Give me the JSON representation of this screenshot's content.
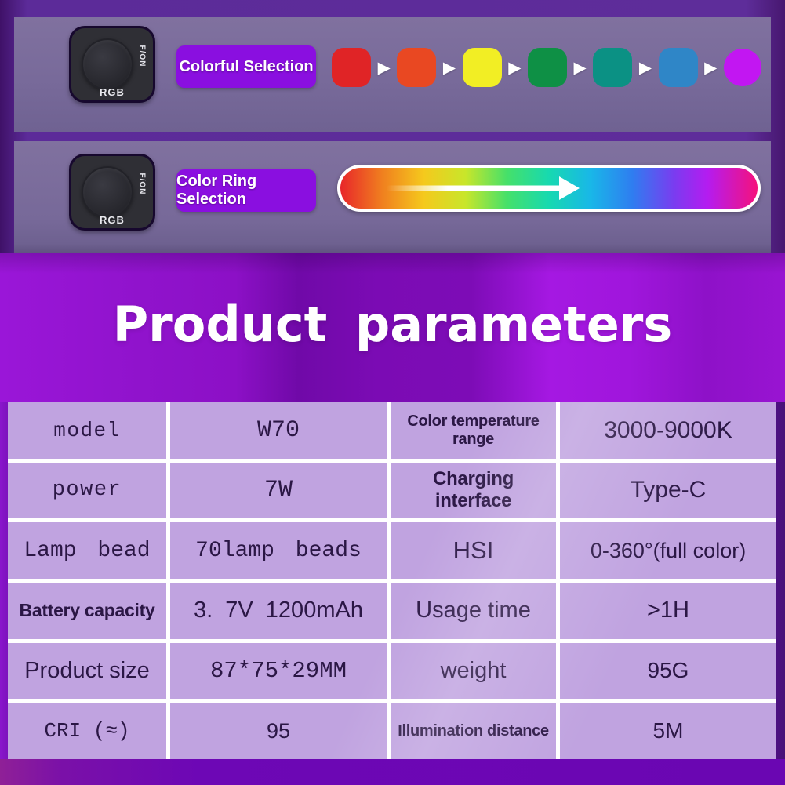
{
  "title": "Product parameters",
  "banners": [
    {
      "button_label": "Colorful Selection",
      "device": {
        "power_label": "F/ON",
        "mode_label": "RGB"
      },
      "arrow_icon": "▶",
      "swatches": [
        "#e02426",
        "#e94822",
        "#f2ee24",
        "#0e9045",
        "#0b9184",
        "#2f86c7",
        "#c216f2"
      ]
    },
    {
      "button_label": "Color Ring Selection",
      "device": {
        "power_label": "F/ON",
        "mode_label": "RGB"
      },
      "gradient_stops": [
        "#e8262a 0%",
        "#f07f1f 10%",
        "#f5c91d 20%",
        "#c8e62a 30%",
        "#45e06a 40%",
        "#17d9b0 50%",
        "#19b7e8 60%",
        "#2f7df0 70%",
        "#7a3cf0 80%",
        "#b41cf0 88%",
        "#f5127c 100%"
      ]
    }
  ],
  "spec_table": {
    "rows": [
      {
        "c0": "model",
        "c1": "W70",
        "c2": "Color temperature range",
        "c3": "3000-9000K"
      },
      {
        "c0": "power",
        "c1": "7W",
        "c2": "Charging interface",
        "c3": "Type-C"
      },
      {
        "c0": "Lamp bead",
        "c1": "70lamp beads",
        "c2": "HSI",
        "c3": "0-360°(full color)"
      },
      {
        "c0": "Battery capacity",
        "c1": "3. 7V 1200mAh",
        "c2": "Usage time",
        "c3": ">1H"
      },
      {
        "c0": "Product size",
        "c1": "87*75*29MM",
        "c2": "weight",
        "c3": "95G"
      },
      {
        "c0": "CRI (≈)",
        "c1": "95",
        "c2": "Illumination distance",
        "c3": "5M"
      }
    ]
  },
  "colors": {
    "badge_purple": "#8a0fe0",
    "table_cell_bg": "#c0a3e0",
    "table_text": "#2b1745",
    "panel_bg": "#786a9a",
    "page_purple": "#5c2b99",
    "title_bg_purple": "#8c10c6"
  }
}
